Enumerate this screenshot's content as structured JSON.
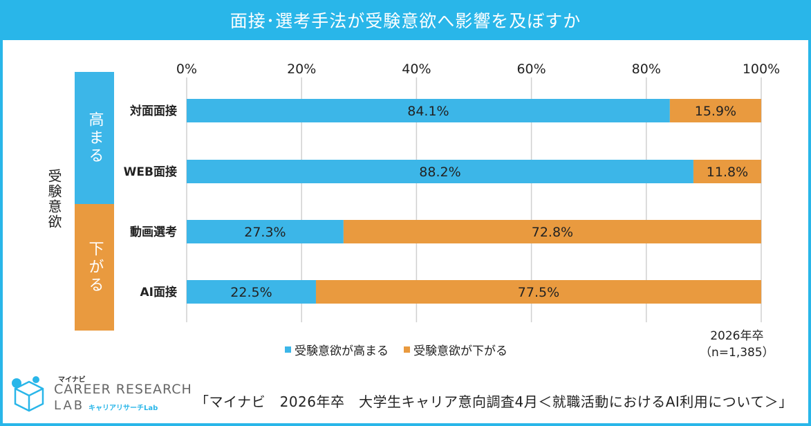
{
  "title": "面接･選考手法が受験意欲へ影響を及ぼすか",
  "y_axis_label": "受験意欲",
  "groups": [
    {
      "label": "高まる",
      "color": "#3cb6e8"
    },
    {
      "label": "下がる",
      "color": "#e99a3f"
    }
  ],
  "legend": [
    {
      "label": "受験意欲が高まる",
      "color": "#3cb6e8"
    },
    {
      "label": "受験意欲が下がる",
      "color": "#e99a3f"
    }
  ],
  "note_line1": "2026年卒",
  "note_line2": "（n=1,385）",
  "source": "「マイナビ　2026年卒　大学生キャリア意向調査4月＜就職活動におけるAI利用について＞」",
  "logo": {
    "small": "マイナビ",
    "main": "CAREER RESEARCH",
    "lab": "LAB",
    "sub": "キャリアリサーチLab"
  },
  "chart_data": {
    "type": "bar",
    "orientation": "horizontal",
    "stacked": true,
    "categories": [
      "対面面接",
      "WEB面接",
      "動画選考",
      "AI面接"
    ],
    "series": [
      {
        "name": "受験意欲が高まる",
        "values": [
          84.1,
          88.2,
          27.3,
          22.5
        ],
        "labels": [
          "84.1%",
          "88.2%",
          "27.3%",
          "22.5%"
        ],
        "color": "#3cb6e8"
      },
      {
        "name": "受験意欲が下がる",
        "values": [
          15.9,
          11.8,
          72.8,
          77.5
        ],
        "labels": [
          "15.9%",
          "11.8%",
          "72.8%",
          "77.5%"
        ],
        "color": "#e99a3f"
      }
    ],
    "xlim": [
      0,
      100
    ],
    "xticks": [
      "0%",
      "20%",
      "40%",
      "60%",
      "80%",
      "100%"
    ],
    "grid": true
  }
}
